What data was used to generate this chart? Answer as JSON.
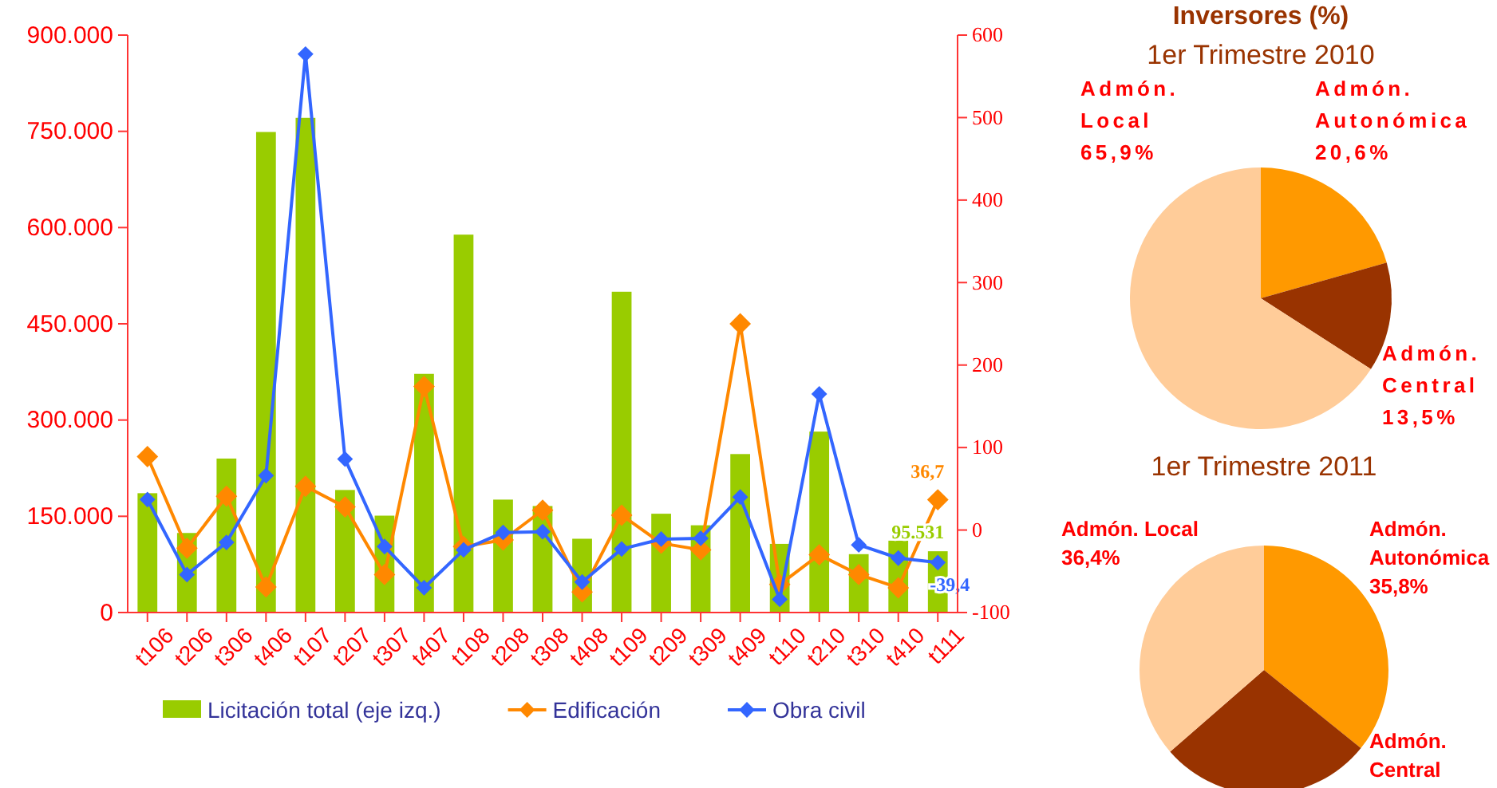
{
  "chart_data": [
    {
      "type": "bar",
      "categories": [
        "t106",
        "t206",
        "t306",
        "t406",
        "t107",
        "t207",
        "t307",
        "t407",
        "t108",
        "t208",
        "t308",
        "t408",
        "t109",
        "t209",
        "t309",
        "t409",
        "t110",
        "t210",
        "t310",
        "t410",
        "t111"
      ],
      "series": [
        {
          "name": "Licitación total (eje izq.)",
          "type": "bar",
          "color": "#99cc00",
          "values": [
            186000,
            124000,
            240000,
            749000,
            771000,
            191000,
            151000,
            372000,
            589000,
            176000,
            166000,
            115000,
            500000,
            154000,
            136000,
            247000,
            107000,
            282000,
            91000,
            112000,
            95531
          ],
          "value_labels": [
            null,
            null,
            null,
            null,
            null,
            null,
            null,
            null,
            null,
            null,
            null,
            null,
            null,
            null,
            null,
            null,
            null,
            null,
            null,
            null,
            "95.531"
          ]
        },
        {
          "name": "Edificación",
          "type": "line",
          "axis": "y2",
          "color": "#ff8800",
          "values": [
            89,
            -22,
            41,
            -69,
            53,
            28,
            -54,
            174,
            -20,
            -12,
            24,
            -75,
            18,
            -16,
            -24,
            250,
            -66,
            -30,
            -54,
            -70,
            36.7
          ],
          "value_labels": [
            null,
            null,
            null,
            null,
            null,
            null,
            null,
            null,
            null,
            null,
            null,
            null,
            null,
            null,
            null,
            null,
            null,
            null,
            null,
            null,
            "36,7"
          ]
        },
        {
          "name": "Obra civil",
          "type": "line",
          "axis": "y2",
          "color": "#3366ff",
          "values": [
            37,
            -54,
            -15,
            66,
            577,
            86,
            -20,
            -70,
            -24,
            -3,
            -2,
            -63,
            -23,
            -11,
            -10,
            40,
            -84,
            165,
            -18,
            -34,
            -39.4
          ],
          "value_labels": [
            null,
            null,
            null,
            null,
            null,
            null,
            null,
            null,
            null,
            null,
            null,
            null,
            null,
            null,
            null,
            null,
            null,
            null,
            null,
            null,
            "-39,4"
          ]
        }
      ],
      "ylim": [
        0,
        900000
      ],
      "yticks": [
        {
          "value": 0,
          "label": "0"
        },
        {
          "value": 150000,
          "label": "150.000"
        },
        {
          "value": 300000,
          "label": "300.000"
        },
        {
          "value": 450000,
          "label": "450.000"
        },
        {
          "value": 600000,
          "label": "600.000"
        },
        {
          "value": 750000,
          "label": "750.000"
        },
        {
          "value": 900000,
          "label": "900.000"
        }
      ],
      "y2lim": [
        -100,
        600
      ],
      "y2ticks": [
        -100,
        0,
        100,
        200,
        300,
        400,
        500,
        600
      ],
      "marker": "diamond",
      "legend": "bottom",
      "grid": false
    },
    {
      "type": "pie",
      "title": "Inversores (%)",
      "subtitle": "1er Trimestre 2010",
      "categories": [
        "Admón. Autonómica",
        "Admón. Central",
        "Admón. Local"
      ],
      "values": [
        20.6,
        13.5,
        65.9
      ],
      "colors": [
        "#ff9900",
        "#993300",
        "#ffcc99"
      ],
      "value_labels": [
        "20,6%",
        "13,5%",
        "65,9%"
      ]
    },
    {
      "type": "pie",
      "title": "1er Trimestre 2011",
      "categories": [
        "Admón. Autonómica",
        "Admón. Central",
        "Admón. Local"
      ],
      "values": [
        35.8,
        27.8,
        36.4
      ],
      "colors": [
        "#ff9900",
        "#993300",
        "#ffcc99"
      ],
      "value_labels": [
        "35,8%",
        null,
        "36,4%"
      ]
    }
  ]
}
